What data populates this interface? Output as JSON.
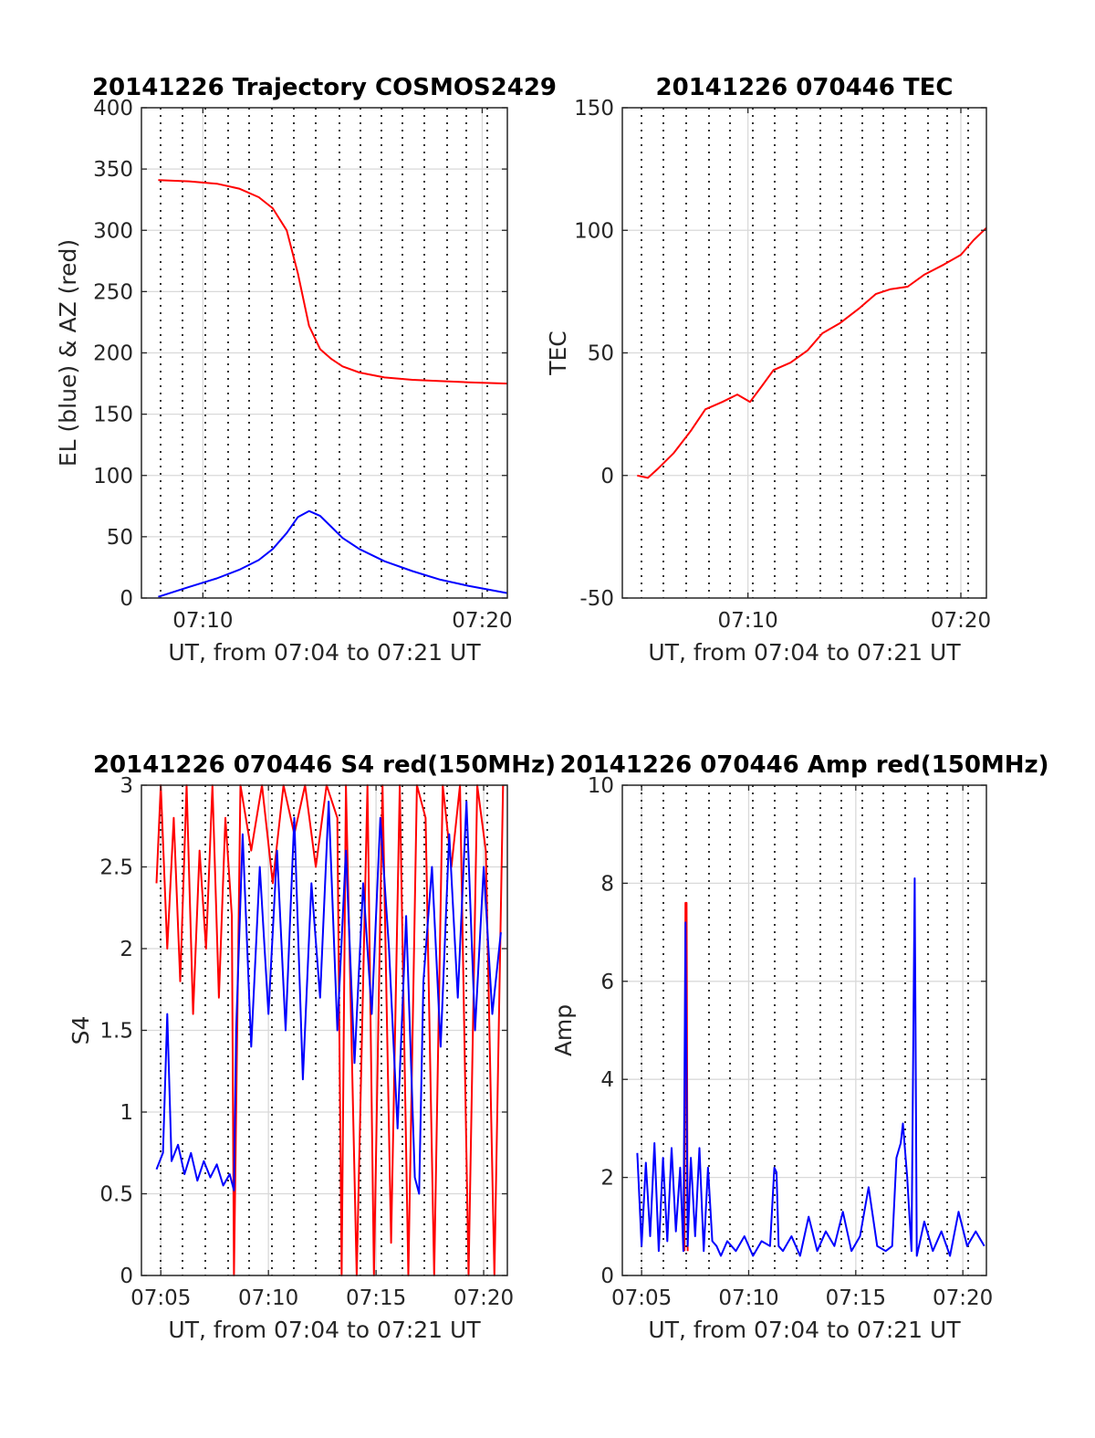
{
  "colors": {
    "red": "#ff0000",
    "blue": "#0000ff",
    "axis": "#262626",
    "grid": "#d9d9d9"
  },
  "chart_data": [
    {
      "id": "trajectory",
      "type": "line",
      "title": "20141226 Trajectory COSMOS2429",
      "xlabel": "UT, from 07:04 to 07:21 UT",
      "ylabel": "EL (blue) & AZ (red)",
      "xlim": [
        7.8,
        20.9
      ],
      "ylim": [
        0,
        400
      ],
      "yticks": [
        0,
        50,
        100,
        150,
        200,
        250,
        300,
        350,
        400
      ],
      "ytick_labels": [
        "0",
        "50",
        "100",
        "150",
        "200",
        "250",
        "300",
        "350",
        "400"
      ],
      "xticks": [
        10,
        20
      ],
      "xtick_labels": [
        "07:10",
        "07:20"
      ],
      "grid": true,
      "series": [
        {
          "color": "#ff0000",
          "x": [
            8.4,
            9.5,
            10.5,
            11.3,
            12.0,
            12.5,
            13.0,
            13.4,
            13.8,
            14.2,
            14.6,
            15.0,
            15.6,
            16.5,
            17.5,
            18.5,
            19.5,
            20.9
          ],
          "y": [
            341,
            340,
            338,
            334,
            327,
            318,
            300,
            265,
            222,
            203,
            195,
            189,
            184,
            180,
            178,
            177,
            176,
            175
          ]
        },
        {
          "color": "#0000ff",
          "x": [
            8.4,
            9.5,
            10.5,
            11.3,
            12.0,
            12.5,
            13.0,
            13.4,
            13.8,
            14.2,
            14.6,
            15.0,
            15.6,
            16.5,
            17.5,
            18.5,
            19.5,
            20.9
          ],
          "y": [
            1,
            9,
            16,
            23,
            31,
            40,
            53,
            66,
            71,
            67,
            58,
            49,
            40,
            30,
            22,
            15,
            10,
            4
          ]
        }
      ]
    },
    {
      "id": "tec",
      "type": "line",
      "title": "20141226 070446 TEC",
      "xlabel": "UT, from 07:04 to 07:21 UT",
      "ylabel": "TEC",
      "xlim": [
        4.1,
        21.2
      ],
      "ylim": [
        -50,
        150
      ],
      "yticks": [
        -50,
        0,
        50,
        100,
        150
      ],
      "ytick_labels": [
        "-50",
        "0",
        "50",
        "100",
        "150"
      ],
      "xticks": [
        10,
        20
      ],
      "xtick_labels": [
        "07:10",
        "07:20"
      ],
      "grid": true,
      "series": [
        {
          "color": "#ff0000",
          "x": [
            4.8,
            5.3,
            5.8,
            6.5,
            7.3,
            8.0,
            8.8,
            9.5,
            10.1,
            10.7,
            11.2,
            12.0,
            12.8,
            13.5,
            14.3,
            15.2,
            16.0,
            16.7,
            17.5,
            18.3,
            19.2,
            20.0,
            20.6,
            21.2
          ],
          "y": [
            0,
            -1,
            3,
            9,
            18,
            27,
            30,
            33,
            30,
            37,
            43,
            46,
            51,
            58,
            62,
            68,
            74,
            76,
            77,
            82,
            86,
            90,
            96,
            101
          ]
        }
      ]
    },
    {
      "id": "s4",
      "type": "line",
      "title": "20141226 070446 S4 red(150MHz)",
      "xlabel": "UT, from 07:04 to 07:21 UT",
      "ylabel": "S4",
      "xlim": [
        4.1,
        21.1
      ],
      "ylim": [
        0,
        3
      ],
      "yticks": [
        0,
        0.5,
        1,
        1.5,
        2,
        2.5,
        3
      ],
      "ytick_labels": [
        "0",
        "0.5",
        "1",
        "1.5",
        "2",
        "2.5",
        "3"
      ],
      "xticks": [
        5,
        10,
        15,
        20
      ],
      "xtick_labels": [
        "07:05",
        "07:10",
        "07:15",
        "07:20"
      ],
      "grid": true,
      "series": [
        {
          "color": "#ff0000",
          "x": [
            4.8,
            5.0,
            5.3,
            5.6,
            5.9,
            6.2,
            6.5,
            6.8,
            7.1,
            7.4,
            7.7,
            8.0,
            8.3,
            8.4,
            8.7,
            9.2,
            9.7,
            10.2,
            10.7,
            11.2,
            11.7,
            12.2,
            12.7,
            13.2,
            13.4,
            13.6,
            14.1,
            14.6,
            14.9,
            15.3,
            15.7,
            16.1,
            16.5,
            16.9,
            17.3,
            17.7,
            18.1,
            18.5,
            18.9,
            19.3,
            19.7,
            20.1,
            20.5,
            20.9
          ],
          "y": [
            2.4,
            3.0,
            2.0,
            2.8,
            1.8,
            3.0,
            1.6,
            2.6,
            2.0,
            3.0,
            1.7,
            2.8,
            2.2,
            0.0,
            3.0,
            2.6,
            3.0,
            2.4,
            3.0,
            2.7,
            3.0,
            2.5,
            3.0,
            2.8,
            0.0,
            3.0,
            0.0,
            3.0,
            0.0,
            3.0,
            0.2,
            3.0,
            0.0,
            3.0,
            2.8,
            0.0,
            3.0,
            2.5,
            3.0,
            0.0,
            3.0,
            2.6,
            0.0,
            3.0
          ]
        },
        {
          "color": "#0000ff",
          "x": [
            4.8,
            5.1,
            5.3,
            5.5,
            5.8,
            6.1,
            6.4,
            6.7,
            7.0,
            7.3,
            7.6,
            7.9,
            8.2,
            8.4,
            8.5,
            8.8,
            9.2,
            9.6,
            10.0,
            10.4,
            10.8,
            11.2,
            11.6,
            12.0,
            12.4,
            12.8,
            13.2,
            13.6,
            14.0,
            14.4,
            14.8,
            15.2,
            15.6,
            16.0,
            16.4,
            16.8,
            17.0,
            17.2,
            17.6,
            18.0,
            18.4,
            18.8,
            19.2,
            19.6,
            20.0,
            20.4,
            20.8
          ],
          "y": [
            0.65,
            0.75,
            1.6,
            0.7,
            0.8,
            0.62,
            0.75,
            0.58,
            0.7,
            0.6,
            0.68,
            0.55,
            0.62,
            0.52,
            1.5,
            2.7,
            1.4,
            2.5,
            1.6,
            2.6,
            1.5,
            2.8,
            1.2,
            2.4,
            1.7,
            2.9,
            1.5,
            2.6,
            1.3,
            2.4,
            1.6,
            2.8,
            2.0,
            0.9,
            2.2,
            0.6,
            0.5,
            1.8,
            2.5,
            1.4,
            2.7,
            1.7,
            2.9,
            1.5,
            2.5,
            1.6,
            2.1
          ]
        }
      ]
    },
    {
      "id": "amp",
      "type": "line",
      "title": "20141226 070446 Amp red(150MHz)",
      "xlabel": "UT, from 07:04 to 07:21 UT",
      "ylabel": "Amp",
      "xlim": [
        4.1,
        21.1
      ],
      "ylim": [
        0,
        10
      ],
      "yticks": [
        0,
        2,
        4,
        6,
        8,
        10
      ],
      "ytick_labels": [
        "0",
        "2",
        "4",
        "6",
        "8",
        "10"
      ],
      "xticks": [
        5,
        10,
        15,
        20
      ],
      "xtick_labels": [
        "07:05",
        "07:10",
        "07:15",
        "07:20"
      ],
      "grid": true,
      "series": [
        {
          "color": "#ff0000",
          "x": [
            7.0,
            7.05,
            7.1,
            7.15
          ],
          "y": [
            0.5,
            7.6,
            7.6,
            0.5
          ]
        },
        {
          "color": "#0000ff",
          "x": [
            4.8,
            5.0,
            5.2,
            5.4,
            5.6,
            5.8,
            6.0,
            6.2,
            6.4,
            6.6,
            6.8,
            6.95,
            7.05,
            7.15,
            7.3,
            7.5,
            7.7,
            7.9,
            8.1,
            8.3,
            8.5,
            8.7,
            9.0,
            9.4,
            9.8,
            10.2,
            10.6,
            11.0,
            11.2,
            11.3,
            11.4,
            11.6,
            12.0,
            12.4,
            12.8,
            13.2,
            13.6,
            14.0,
            14.4,
            14.8,
            15.2,
            15.6,
            16.0,
            16.4,
            16.7,
            16.9,
            17.1,
            17.2,
            17.4,
            17.6,
            17.75,
            17.85,
            17.95,
            18.2,
            18.6,
            19.0,
            19.4,
            19.8,
            20.2,
            20.6,
            21.0
          ],
          "y": [
            2.5,
            0.6,
            2.3,
            0.8,
            2.7,
            0.5,
            2.4,
            0.7,
            2.6,
            0.9,
            2.2,
            0.5,
            7.2,
            0.6,
            2.4,
            0.8,
            2.6,
            0.5,
            2.2,
            0.7,
            0.6,
            0.4,
            0.7,
            0.5,
            0.8,
            0.4,
            0.7,
            0.6,
            2.2,
            2.1,
            0.6,
            0.5,
            0.8,
            0.4,
            1.2,
            0.5,
            0.9,
            0.6,
            1.3,
            0.5,
            0.8,
            1.8,
            0.6,
            0.5,
            0.6,
            2.4,
            2.7,
            3.1,
            2.0,
            0.5,
            8.1,
            0.4,
            0.6,
            1.1,
            0.5,
            0.9,
            0.4,
            1.3,
            0.6,
            0.9,
            0.6
          ]
        }
      ]
    }
  ]
}
